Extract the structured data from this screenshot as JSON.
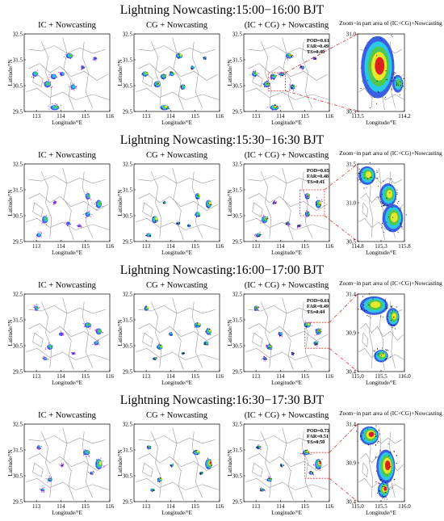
{
  "colors": {
    "outer": "#3a5fe0",
    "mid": "#29c8e6",
    "inner": "#50c850",
    "core": "#e8e82a",
    "hot": "#e02020",
    "ic_point": "#b000c0",
    "cg_point": "#000000",
    "boundary": "#999999",
    "zoom_box": "#e03030"
  },
  "panel_titles": {
    "ic": "IC + Nowcasting",
    "cg": "CG + Nowcasting",
    "both": "(IC + CG) + Nowcasting",
    "zoom": "Zoom−in part area of (IC+CG)+Nowcasting"
  },
  "chart_data": [
    {
      "type": "heatmap",
      "title": "Lightning Nowcasting:15:00−16:00 BJT",
      "xlabel": "Longitude/°E",
      "ylabel": "Latitude/°N",
      "xlim": [
        112.5,
        116
      ],
      "ylim": [
        29.5,
        32.5
      ],
      "xticks": [
        "113",
        "114",
        "115",
        "116"
      ],
      "yticks": [
        "29.5",
        "30.5",
        "31.5",
        "32.5"
      ],
      "stats": {
        "POD": "0.61",
        "FAR": "0.49",
        "TS": "0.40"
      },
      "zoom": {
        "xlim": [
          113.5,
          114.2
        ],
        "ylim": [
          30.3,
          31.0
        ],
        "xticks": [
          "113.5",
          "114.2"
        ],
        "yticks": [
          "30.3",
          "31.0"
        ]
      },
      "cells": [
        [
          112.95,
          30.95,
          0.12,
          0.1,
          3
        ],
        [
          113.45,
          30.55,
          0.14,
          0.12,
          3
        ],
        [
          113.7,
          30.85,
          0.12,
          0.1,
          2
        ],
        [
          114.05,
          30.95,
          0.1,
          0.08,
          2
        ],
        [
          114.35,
          31.65,
          0.14,
          0.1,
          3
        ],
        [
          114.5,
          30.45,
          0.1,
          0.1,
          2
        ],
        [
          113.75,
          29.65,
          0.18,
          0.1,
          3
        ],
        [
          115.4,
          31.55,
          0.07,
          0.05,
          1
        ],
        [
          114.9,
          31.2,
          0.08,
          0.06,
          1
        ]
      ],
      "zoom_cells": [
        [
          113.8,
          30.7,
          0.25,
          0.28,
          4
        ],
        [
          114.1,
          30.55,
          0.08,
          0.08,
          2
        ]
      ]
    },
    {
      "type": "heatmap",
      "title": "Lightning Nowcasting:15:30−16:30 BJT",
      "xlabel": "Longitude/°E",
      "ylabel": "Latitude/°N",
      "xlim": [
        112.5,
        116
      ],
      "ylim": [
        29.5,
        32.5
      ],
      "xticks": [
        "113",
        "114",
        "115",
        "116"
      ],
      "yticks": [
        "29.5",
        "30.5",
        "31.5",
        "32.5"
      ],
      "stats": {
        "POD": "0.65",
        "FAR": "0.48",
        "TS": "0.41"
      },
      "zoom": {
        "xlim": [
          114.8,
          115.8
        ],
        "ylim": [
          30.5,
          31.5
        ],
        "xticks": [
          "114.8",
          "115.3",
          "115.8"
        ],
        "yticks": [
          "30.5",
          "31.0",
          "31.5"
        ]
      },
      "cells": [
        [
          113.35,
          30.35,
          0.12,
          0.14,
          3
        ],
        [
          113.1,
          29.75,
          0.1,
          0.08,
          2
        ],
        [
          115.1,
          31.25,
          0.1,
          0.12,
          3
        ],
        [
          115.55,
          30.95,
          0.12,
          0.16,
          3
        ],
        [
          115.1,
          30.55,
          0.1,
          0.1,
          2
        ],
        [
          114.3,
          30.2,
          0.08,
          0.06,
          1
        ],
        [
          114.75,
          30.1,
          0.07,
          0.05,
          1
        ],
        [
          113.75,
          31.0,
          0.06,
          0.05,
          1
        ]
      ],
      "zoom_cells": [
        [
          115.0,
          31.35,
          0.18,
          0.12,
          3
        ],
        [
          115.45,
          31.1,
          0.18,
          0.15,
          3
        ],
        [
          115.55,
          30.8,
          0.22,
          0.18,
          3
        ]
      ]
    },
    {
      "type": "heatmap",
      "title": "Lightning Nowcasting:16:00−17:00 BJT",
      "xlabel": "Longitude/°E",
      "ylabel": "Latitude/°N",
      "xlim": [
        112.5,
        116
      ],
      "ylim": [
        29.5,
        32.5
      ],
      "xticks": [
        "113",
        "114",
        "115",
        "116"
      ],
      "yticks": [
        "29.5",
        "30.5",
        "31.5",
        "32.5"
      ],
      "stats": {
        "POD": "0.61",
        "FAR": "0.49",
        "TS": "0.44"
      },
      "zoom": {
        "xlim": [
          115.0,
          116.0
        ],
        "ylim": [
          30.4,
          31.4
        ],
        "xticks": [
          "115.0",
          "115.5",
          "116.0"
        ],
        "yticks": [
          "30.4",
          "30.9",
          "31.4"
        ]
      },
      "cells": [
        [
          113.0,
          31.95,
          0.08,
          0.1,
          3
        ],
        [
          113.55,
          30.45,
          0.12,
          0.1,
          3
        ],
        [
          113.35,
          30.0,
          0.08,
          0.06,
          2
        ],
        [
          115.1,
          31.3,
          0.14,
          0.1,
          3
        ],
        [
          115.55,
          31.05,
          0.12,
          0.12,
          3
        ],
        [
          115.45,
          30.6,
          0.1,
          0.08,
          2
        ],
        [
          114.0,
          30.95,
          0.08,
          0.07,
          1
        ],
        [
          114.5,
          30.2,
          0.06,
          0.05,
          1
        ]
      ],
      "zoom_cells": [
        [
          115.35,
          31.25,
          0.3,
          0.12,
          3
        ],
        [
          115.75,
          31.1,
          0.14,
          0.12,
          3
        ],
        [
          115.5,
          30.6,
          0.15,
          0.08,
          3
        ]
      ]
    },
    {
      "type": "heatmap",
      "title": "Lightning Nowcasting:16:30−17:30 BJT",
      "xlabel": "Longitude/°E",
      "ylabel": "Latitude/°N",
      "xlim": [
        112.5,
        116
      ],
      "ylim": [
        29.5,
        32.5
      ],
      "xticks": [
        "113",
        "114",
        "115",
        "116"
      ],
      "yticks": [
        "29.5",
        "30.5",
        "31.5",
        "32.5"
      ],
      "stats": {
        "POD": "0.73",
        "FAR": "0.51",
        "TS": "0.50"
      },
      "zoom": {
        "xlim": [
          115.0,
          116.0
        ],
        "ylim": [
          30.4,
          31.4
        ],
        "xticks": [
          "115.0",
          "115.5",
          "116.0"
        ],
        "yticks": [
          "30.4",
          "30.9",
          "31.4"
        ]
      },
      "cells": [
        [
          113.1,
          31.6,
          0.08,
          0.08,
          2
        ],
        [
          113.55,
          30.35,
          0.1,
          0.08,
          3
        ],
        [
          113.25,
          29.95,
          0.08,
          0.06,
          2
        ],
        [
          115.05,
          31.4,
          0.14,
          0.1,
          3
        ],
        [
          115.55,
          30.95,
          0.14,
          0.2,
          4
        ],
        [
          115.25,
          30.6,
          0.08,
          0.06,
          2
        ],
        [
          114.05,
          30.9,
          0.06,
          0.05,
          1
        ]
      ],
      "zoom_cells": [
        [
          115.25,
          31.25,
          0.2,
          0.12,
          4
        ],
        [
          115.6,
          30.85,
          0.2,
          0.22,
          4
        ],
        [
          115.55,
          30.55,
          0.12,
          0.1,
          4
        ]
      ]
    }
  ]
}
